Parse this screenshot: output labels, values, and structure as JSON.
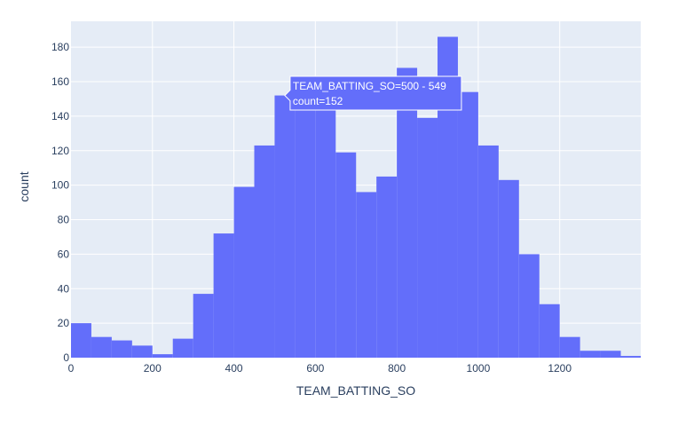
{
  "chart_data": {
    "type": "bar",
    "subtype": "histogram",
    "xlabel": "TEAM_BATTING_SO",
    "ylabel": "count",
    "bin_size": 50,
    "bin_starts": [
      0,
      50,
      100,
      150,
      200,
      250,
      300,
      350,
      400,
      450,
      500,
      550,
      600,
      650,
      700,
      750,
      800,
      850,
      900,
      950,
      1000,
      1050,
      1100,
      1150,
      1200,
      1250,
      1300,
      1350
    ],
    "values": [
      20,
      12,
      10,
      7,
      2,
      11,
      37,
      72,
      99,
      123,
      152,
      156,
      162,
      119,
      96,
      105,
      168,
      139,
      186,
      154,
      123,
      103,
      60,
      31,
      12,
      4,
      4,
      1
    ],
    "xlim": [
      0,
      1399
    ],
    "ylim": [
      0,
      195
    ],
    "x_ticks": [
      0,
      200,
      400,
      600,
      800,
      1000,
      1200
    ],
    "y_ticks": [
      0,
      20,
      40,
      60,
      80,
      100,
      120,
      140,
      160,
      180
    ],
    "grid": true,
    "colors": {
      "bar": "#636efa",
      "plot_bg": "#e5ecf6",
      "grid": "#ffffff",
      "text": "#2a3f5f"
    },
    "hover": {
      "bin_index": 10,
      "line1": "TEAM_BATTING_SO=500 - 549",
      "line2": "count=152"
    }
  }
}
